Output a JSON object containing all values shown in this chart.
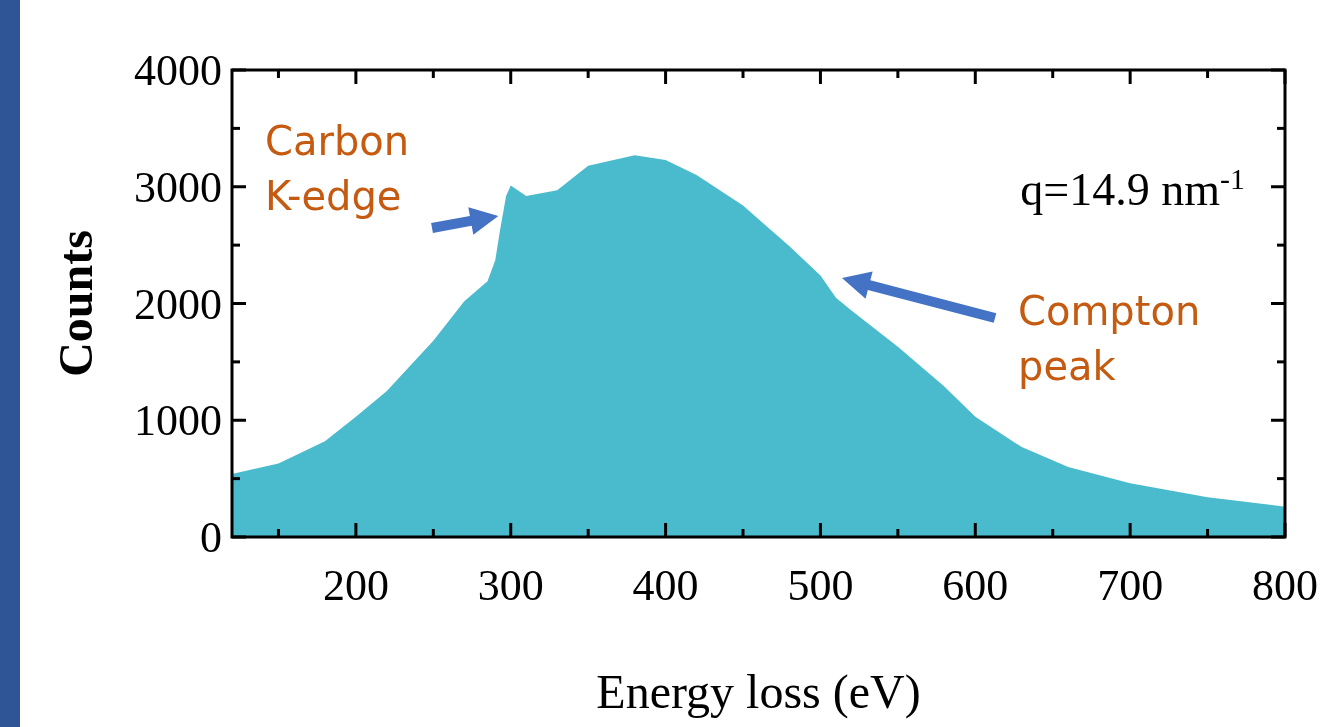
{
  "chart_data": {
    "type": "area",
    "xlabel": "Energy loss (eV)",
    "ylabel": "Counts",
    "xlim": [
      120,
      800
    ],
    "xticks": [
      200,
      300,
      400,
      500,
      600,
      700,
      800
    ],
    "ylim": [
      0,
      4000
    ],
    "yticks": [
      0,
      1000,
      2000,
      3000,
      4000
    ],
    "grid": false,
    "annotations": [
      "q=14.9 nm$^{-1}$",
      {
        "text": "Carbon K-edge",
        "x": 292,
        "y": 2750
      },
      "Compton peak"
    ],
    "series": [
      {
        "color": "#4abbcc",
        "x": [
          120,
          150,
          180,
          200,
          220,
          250,
          270,
          285,
          290,
          293,
          297,
          300,
          310,
          330,
          350,
          380,
          400,
          420,
          450,
          480,
          500,
          510,
          520,
          550,
          580,
          600,
          630,
          660,
          700,
          750,
          800
        ],
        "values": [
          540,
          630,
          820,
          1030,
          1250,
          1680,
          2020,
          2190,
          2370,
          2620,
          2920,
          3010,
          2920,
          2970,
          3180,
          3270,
          3230,
          3100,
          2840,
          2490,
          2240,
          2050,
          1940,
          1630,
          1290,
          1030,
          770,
          600,
          460,
          340,
          260
        ]
      }
    ]
  }
}
